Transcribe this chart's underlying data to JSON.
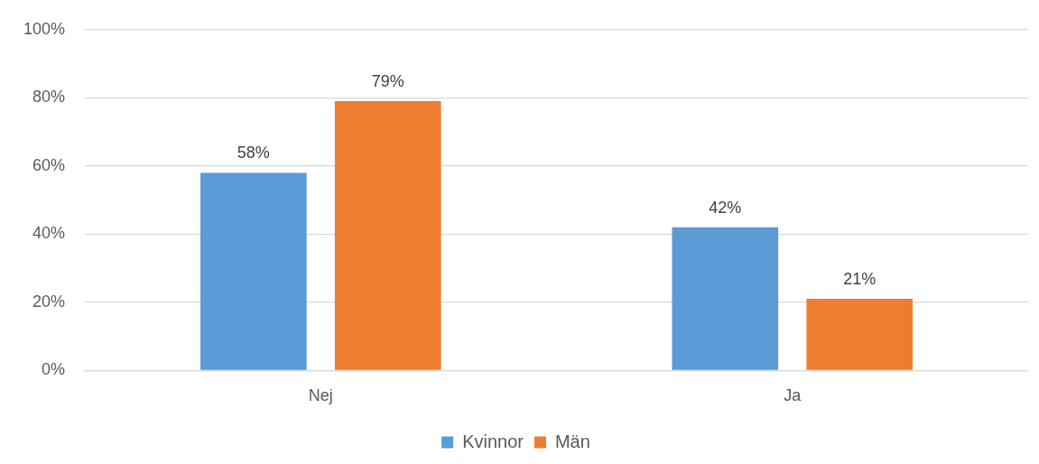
{
  "chart_data": {
    "type": "bar",
    "categories": [
      "Nej",
      "Ja"
    ],
    "series": [
      {
        "name": "Kvinnor",
        "color": "#5b9bd5",
        "values": [
          58,
          42
        ],
        "value_labels": [
          "58%",
          "42%"
        ]
      },
      {
        "name": "Män",
        "color": "#ed7d31",
        "values": [
          79,
          21
        ],
        "value_labels": [
          "79%",
          "21%"
        ]
      }
    ],
    "ylim": [
      0,
      100
    ],
    "yticks": [
      {
        "value": 0,
        "label": "0%"
      },
      {
        "value": 20,
        "label": "20%"
      },
      {
        "value": 40,
        "label": "40%"
      },
      {
        "value": 60,
        "label": "60%"
      },
      {
        "value": 80,
        "label": "80%"
      },
      {
        "value": 100,
        "label": "100%"
      }
    ],
    "grid": "y",
    "legend": "bottom"
  }
}
